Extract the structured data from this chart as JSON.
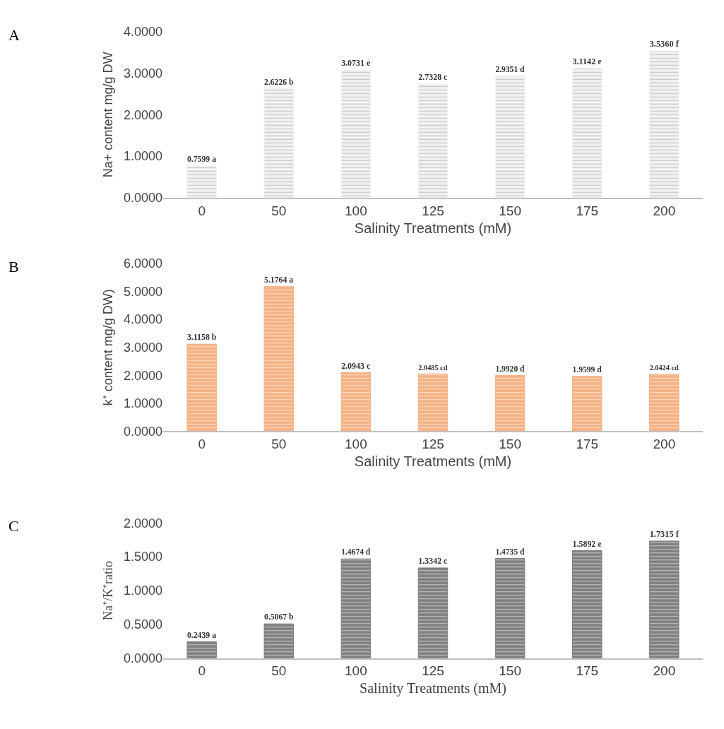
{
  "chart_data": [
    {
      "type": "bar",
      "annotations": [
        "A"
      ],
      "xlabel": "Salinity Treatments (mM)",
      "ylabel": "Na+ content mg/g DW",
      "categories": [
        "0",
        "50",
        "100",
        "125",
        "150",
        "175",
        "200"
      ],
      "values": [
        0.7599,
        2.6226,
        3.0731,
        2.7328,
        2.9351,
        3.1142,
        3.536
      ],
      "color": "#f2f2f2",
      "value_labels": [
        "0.7599 a",
        "2.6226 b",
        "3.0731 e",
        "2.7328 c",
        "2.9351 d",
        "3.1142 e",
        "3.5360 f"
      ],
      "ylim": [
        0,
        4
      ],
      "yticks": [
        {
          "value": 0,
          "label": "0.0000"
        },
        {
          "value": 1,
          "label": "1.0000"
        },
        {
          "value": 2,
          "label": "2.0000"
        },
        {
          "value": 3,
          "label": "3.0000"
        },
        {
          "value": 4,
          "label": "4.0000"
        }
      ]
    },
    {
      "type": "bar",
      "annotations": [
        "B"
      ],
      "xlabel": "Salinity Treatments (mM)",
      "ylabel": "k⁺ content mg/g DW)",
      "categories": [
        "0",
        "50",
        "100",
        "125",
        "150",
        "175",
        "200"
      ],
      "values": [
        3.1158,
        5.1764,
        2.0943,
        2.0485,
        1.992,
        1.9599,
        2.0424
      ],
      "color": "#f4b183",
      "value_labels": [
        "3.1158 b",
        "5.1764 a",
        "2.0943 c",
        "2.0485 cd",
        "1.9920 d",
        "1.9599 d",
        "2.0424 cd"
      ],
      "ylim": [
        0,
        6
      ],
      "yticks": [
        {
          "value": 0,
          "label": "0.0000"
        },
        {
          "value": 1,
          "label": "1.0000"
        },
        {
          "value": 2,
          "label": "2.0000"
        },
        {
          "value": 3,
          "label": "3.0000"
        },
        {
          "value": 4,
          "label": "4.0000"
        },
        {
          "value": 5,
          "label": "5.0000"
        },
        {
          "value": 6,
          "label": "6.0000"
        }
      ]
    },
    {
      "type": "bar",
      "annotations": [
        "C"
      ],
      "xlabel": "Salinity Treatments (mM)",
      "ylabel": "Na⁺/K⁺ratio",
      "categories": [
        "0",
        "50",
        "100",
        "125",
        "150",
        "175",
        "200"
      ],
      "values": [
        0.2439,
        0.5067,
        1.4674,
        1.3342,
        1.4735,
        1.5892,
        1.7315
      ],
      "color": "#7f7f7f",
      "value_labels": [
        "0.2439 a",
        "0.5067 b",
        "1.4674 d",
        "1.3342 c",
        "1.4735 d",
        "1.5892 e",
        "1.7315 f"
      ],
      "ylim": [
        0,
        2
      ],
      "yticks": [
        {
          "value": 0,
          "label": "0.0000"
        },
        {
          "value": 0.5,
          "label": "0.5000"
        },
        {
          "value": 1,
          "label": "1.0000"
        },
        {
          "value": 1.5,
          "label": "1.5000"
        },
        {
          "value": 2,
          "label": "2.0000"
        }
      ]
    }
  ]
}
